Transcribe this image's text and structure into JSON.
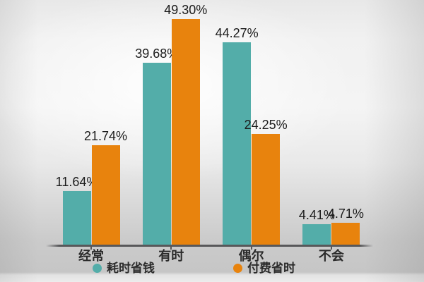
{
  "chart_data": {
    "type": "bar",
    "title": "",
    "xlabel": "",
    "ylabel": "",
    "categories": [
      "经常",
      "有时",
      "偶尔",
      "不会"
    ],
    "series": [
      {
        "name": "耗时省钱",
        "color": "#53ADA9",
        "values": [
          11.64,
          39.68,
          44.27,
          4.41
        ],
        "labels": [
          "11.64%",
          "39.68%",
          "44.27%",
          "4.41%"
        ]
      },
      {
        "name": "付费省时",
        "color": "#E8830D",
        "values": [
          21.74,
          49.3,
          24.25,
          4.71
        ],
        "labels": [
          "21.74%",
          "49.30%",
          "24.25%",
          "4.71%"
        ]
      }
    ],
    "ylim": [
      0,
      55
    ],
    "grid": false,
    "y_axis_visible": false,
    "value_labels_shown": true,
    "legend_position": "bottom"
  },
  "colors": {
    "axis": "#58585A",
    "value_label_text": "#1B1B1B",
    "category_label_text": "#2B2B2B",
    "legend_text": "#2B2B2B"
  }
}
